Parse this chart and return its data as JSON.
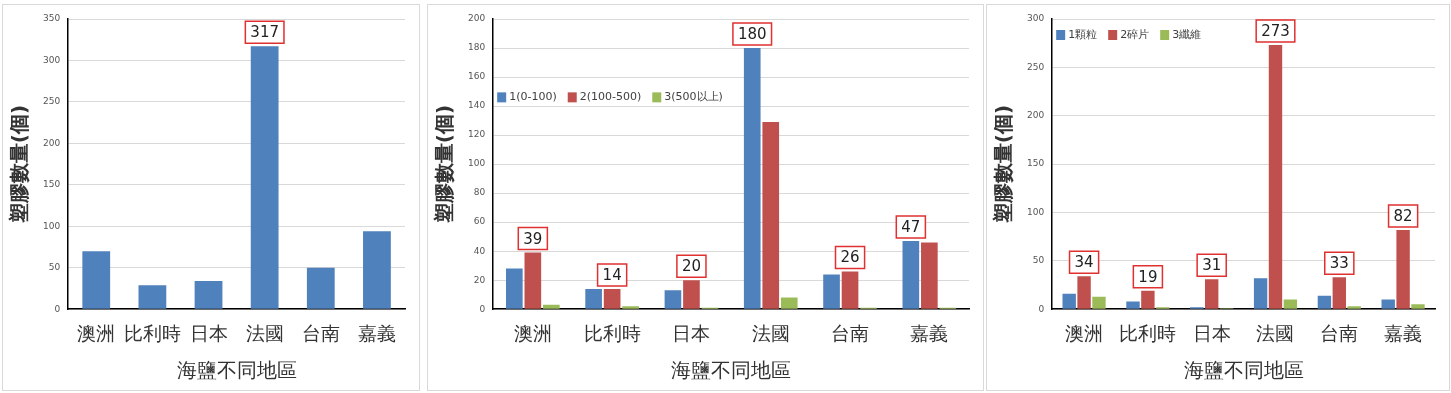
{
  "chart_data": [
    {
      "type": "bar",
      "xlabel": "海鹽不同地區",
      "ylabel": "塑膠數量(個)",
      "categories": [
        "澳洲",
        "比利時",
        "日本",
        "法國",
        "台南",
        "嘉義"
      ],
      "series": [
        {
          "color": "#4f81bd",
          "values": [
            70,
            29,
            34,
            317,
            50,
            94
          ]
        }
      ],
      "ylim": [
        0,
        350
      ],
      "yticks": [
        0,
        50,
        100,
        150,
        200,
        250,
        300,
        350
      ],
      "grid": "y",
      "legend": false,
      "annotations": [
        {
          "text": "317",
          "x": "法國",
          "y": 317
        }
      ]
    },
    {
      "type": "bar",
      "xlabel": "海鹽不同地區",
      "ylabel": "塑膠數量(個)",
      "categories": [
        "澳洲",
        "比利時",
        "日本",
        "法國",
        "台南",
        "嘉義"
      ],
      "series": [
        {
          "name": "1(0-100)",
          "color": "#4f81bd",
          "values": [
            28,
            14,
            13,
            180,
            24,
            47
          ]
        },
        {
          "name": "2(100-500)",
          "color": "#c0504d",
          "values": [
            39,
            14,
            20,
            129,
            26,
            46
          ]
        },
        {
          "name": "3(500以上)",
          "color": "#9bbb59",
          "values": [
            3,
            2,
            1,
            8,
            1,
            1
          ]
        }
      ],
      "ylim": [
        0,
        200
      ],
      "yticks": [
        0,
        20,
        40,
        60,
        80,
        100,
        120,
        140,
        160,
        180,
        200
      ],
      "grid": "y",
      "legend": "top left",
      "annotations": [
        {
          "text": "39",
          "x": "澳洲",
          "y": 39
        },
        {
          "text": "14",
          "x": "比利時",
          "y": 14
        },
        {
          "text": "20",
          "x": "日本",
          "y": 20
        },
        "180",
        {
          "text": "26",
          "x": "台南",
          "y": 26
        },
        {
          "text": "47",
          "x": "嘉義",
          "y": 47
        }
      ]
    },
    {
      "type": "bar",
      "xlabel": "海鹽不同地區",
      "ylabel": "塑膠數量(個)",
      "categories": [
        "澳洲",
        "比利時",
        "日本",
        "法國",
        "台南",
        "嘉義"
      ],
      "series": [
        {
          "name": "1顆粒",
          "color": "#4f81bd",
          "values": [
            16,
            8,
            2,
            32,
            14,
            10
          ]
        },
        {
          "name": "2碎片",
          "color": "#c0504d",
          "values": [
            34,
            19,
            31,
            273,
            33,
            82
          ]
        },
        {
          "name": "3纖維",
          "color": "#9bbb59",
          "values": [
            13,
            2,
            1,
            10,
            3,
            5
          ]
        }
      ],
      "ylim": [
        0,
        300
      ],
      "yticks": [
        0,
        50,
        100,
        150,
        200,
        250,
        300
      ],
      "grid": "y",
      "legend": "top left",
      "annotations": [
        {
          "text": "34",
          "x": "澳洲",
          "y": 34
        },
        {
          "text": "19",
          "x": "比利時",
          "y": 19
        },
        {
          "text": "31",
          "x": "日本",
          "y": 31
        },
        {
          "text": "273",
          "x": "法國",
          "y": 273
        },
        {
          "text": "33",
          "x": "台南",
          "y": 33
        },
        {
          "text": "82",
          "x": "嘉義",
          "y": 82
        }
      ]
    }
  ]
}
